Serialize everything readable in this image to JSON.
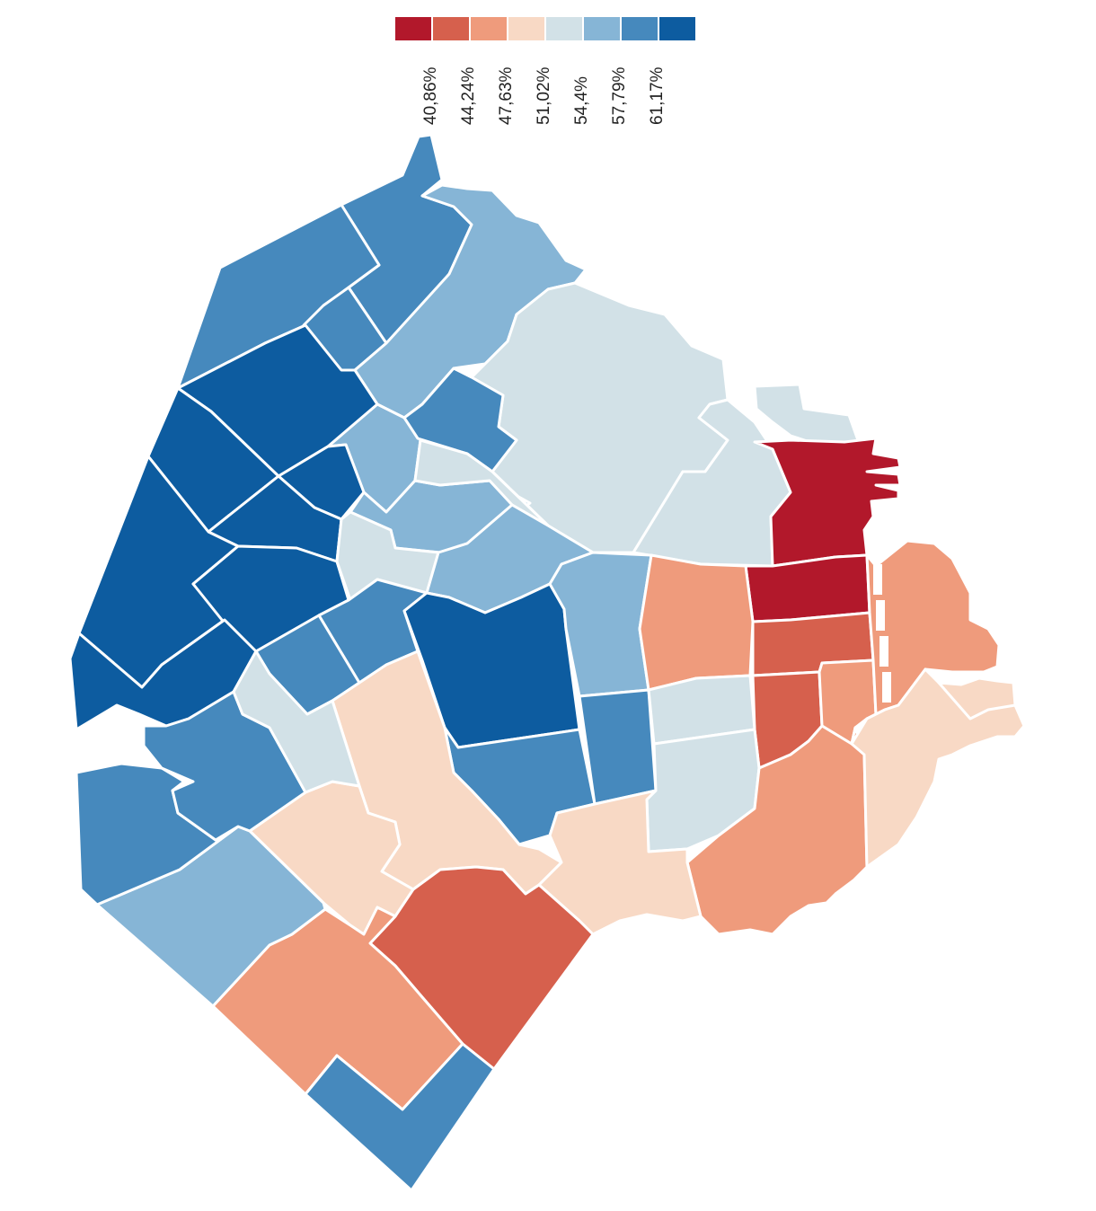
{
  "legend": {
    "colors": [
      "#b2182b",
      "#d6604d",
      "#ef9b7c",
      "#f8d9c5",
      "#d2e1e7",
      "#86b5d6",
      "#4689bd",
      "#0d5ca0"
    ],
    "thresholds": [
      "40,86%",
      "44,24%",
      "47,63%",
      "51,02%",
      "54,4%",
      "57,79%",
      "61,17%"
    ]
  },
  "map_data": {
    "regions": [
      {
        "id": "north-tip",
        "class": 6
      },
      {
        "id": "nw-upper",
        "class": 6
      },
      {
        "id": "nw-small",
        "class": 6
      },
      {
        "id": "n-light-1",
        "class": 5
      },
      {
        "id": "n-light-2",
        "class": 5
      },
      {
        "id": "northeast-large",
        "class": 4
      },
      {
        "id": "ne-coastal",
        "class": 4
      },
      {
        "id": "ne-islands",
        "class": 4
      },
      {
        "id": "center-north-mid",
        "class": 6
      },
      {
        "id": "w-dark-1",
        "class": 7
      },
      {
        "id": "w-dark-2",
        "class": 7
      },
      {
        "id": "w-dark-3",
        "class": 7
      },
      {
        "id": "w-dark-4",
        "class": 7
      },
      {
        "id": "w-dark-5",
        "class": 7
      },
      {
        "id": "w-dark-6",
        "class": 7
      },
      {
        "id": "w-dark-7",
        "class": 7
      },
      {
        "id": "c-light-blue-1",
        "class": 5
      },
      {
        "id": "c-pale-1",
        "class": 4
      },
      {
        "id": "c-pale-2",
        "class": 4
      },
      {
        "id": "c-light-blue-2",
        "class": 5
      },
      {
        "id": "c-mid-blue-1",
        "class": 6
      },
      {
        "id": "c-mid-blue-2",
        "class": 6
      },
      {
        "id": "c-dark-1",
        "class": 7
      },
      {
        "id": "c-light-blue-3",
        "class": 5
      },
      {
        "id": "c-mid-blue-3",
        "class": 6
      },
      {
        "id": "c-mid-blue-4",
        "class": 6
      },
      {
        "id": "e-red-dark",
        "class": 0
      },
      {
        "id": "e-red-2",
        "class": 0
      },
      {
        "id": "e-salmon-1",
        "class": 2
      },
      {
        "id": "e-redmid-1",
        "class": 1
      },
      {
        "id": "e-redmid-2",
        "class": 1
      },
      {
        "id": "e-salmon-2",
        "class": 2
      },
      {
        "id": "e-pale-1",
        "class": 4
      },
      {
        "id": "e-pale-2",
        "class": 4
      },
      {
        "id": "se-salmon-1",
        "class": 2
      },
      {
        "id": "se-salmon-2",
        "class": 2
      },
      {
        "id": "se-peach-1",
        "class": 3
      },
      {
        "id": "se-peach-2",
        "class": 3
      },
      {
        "id": "s-peach-1",
        "class": 3
      },
      {
        "id": "s-peach-2",
        "class": 3
      },
      {
        "id": "s-peach-3",
        "class": 3
      },
      {
        "id": "s-redmid",
        "class": 1
      },
      {
        "id": "s-salmon",
        "class": 2
      },
      {
        "id": "sw-light",
        "class": 5
      },
      {
        "id": "sw-mid-1",
        "class": 6
      },
      {
        "id": "sw-mid-2",
        "class": 6
      },
      {
        "id": "sw-pale",
        "class": 4
      },
      {
        "id": "s-tip",
        "class": 6
      }
    ]
  }
}
